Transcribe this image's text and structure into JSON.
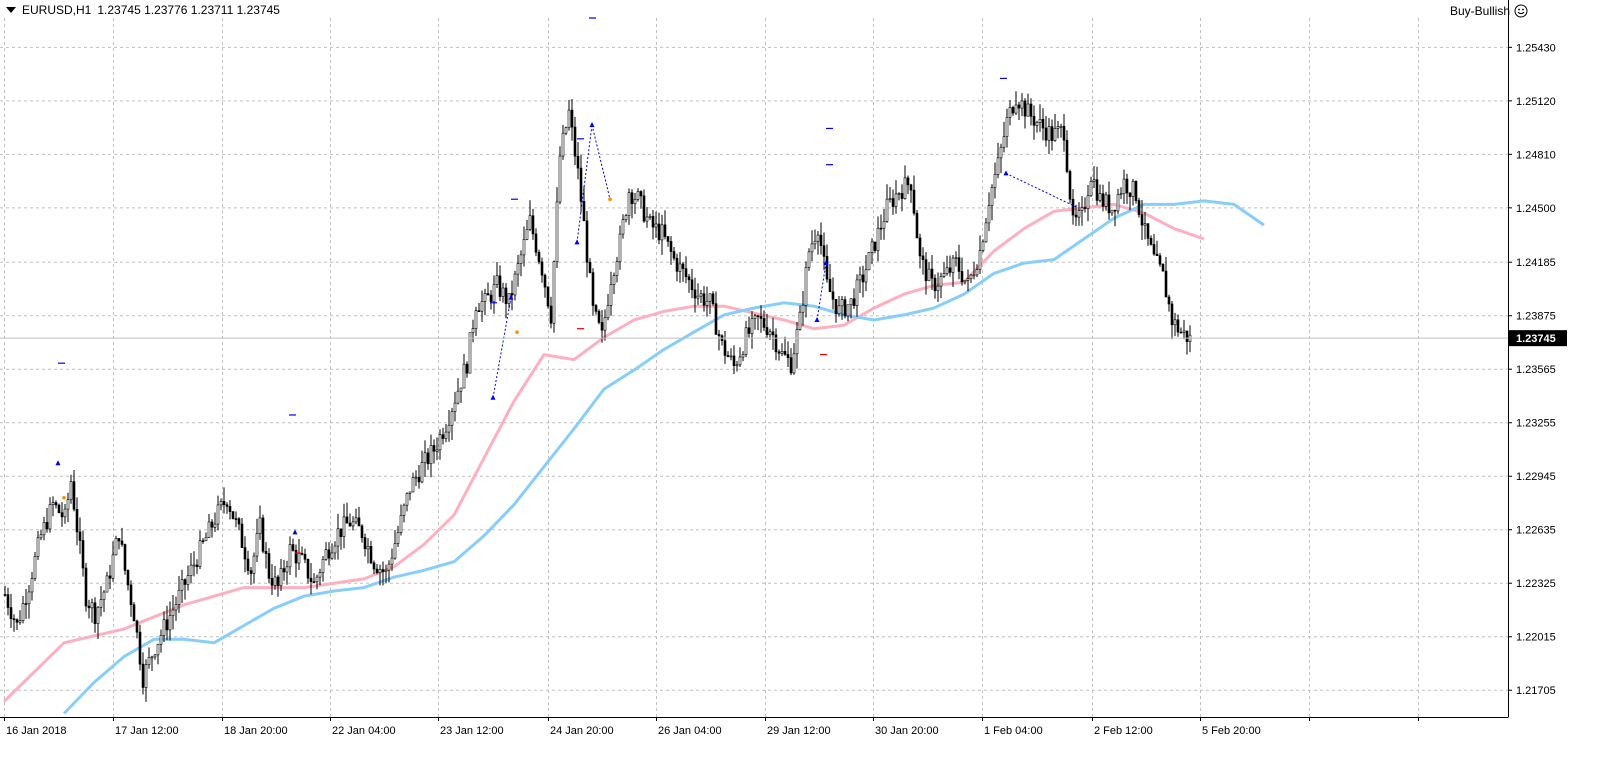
{
  "header": {
    "symbol_tf": "EURUSD,H1",
    "quotes": "1.23745 1.23776 1.23711 1.23745"
  },
  "signal": {
    "label": "Buy-Bullish",
    "icon": "smiley-icon"
  },
  "colors": {
    "background": "#ffffff",
    "grid": "#c0c0c0",
    "candle": "#000000",
    "ma_fast": "#ffb0c0",
    "ma_slow": "#87cefa",
    "marker_blue": "#0000ff",
    "marker_red": "#ff0000",
    "marker_orange": "#ff8c00",
    "price_tag_bg": "#000000",
    "price_tag_text": "#ffffff"
  },
  "chart_data": {
    "type": "candlestick",
    "symbol": "EURUSD",
    "timeframe": "H1",
    "current_price": "1.23745",
    "price_axis_ticks": [
      "1.25430",
      "1.25120",
      "1.24810",
      "1.24500",
      "1.24185",
      "1.23875",
      "1.23565",
      "1.23255",
      "1.22945",
      "1.22635",
      "1.22325",
      "1.22015",
      "1.21705"
    ],
    "ylim": [
      1.2155,
      1.256
    ],
    "time_axis_labels": [
      "16 Jan 2018",
      "17 Jan 12:00",
      "18 Jan 20:00",
      "22 Jan 04:00",
      "23 Jan 12:00",
      "24 Jan 20:00",
      "26 Jan 04:00",
      "29 Jan 12:00",
      "30 Jan 20:00",
      "1 Feb 04:00",
      "2 Feb 12:00",
      "5 Feb 20:00"
    ],
    "close_path": [
      [
        0,
        1.2226
      ],
      [
        4,
        1.2208
      ],
      [
        8,
        1.2232
      ],
      [
        12,
        1.226
      ],
      [
        16,
        1.2278
      ],
      [
        20,
        1.227
      ],
      [
        22,
        1.2292
      ],
      [
        24,
        1.2265
      ],
      [
        27,
        1.2225
      ],
      [
        30,
        1.2215
      ],
      [
        34,
        1.2232
      ],
      [
        38,
        1.2262
      ],
      [
        40,
        1.224
      ],
      [
        43,
        1.2215
      ],
      [
        46,
        1.2178
      ],
      [
        50,
        1.2196
      ],
      [
        54,
        1.221
      ],
      [
        58,
        1.2225
      ],
      [
        62,
        1.224
      ],
      [
        66,
        1.2255
      ],
      [
        70,
        1.227
      ],
      [
        74,
        1.2282
      ],
      [
        78,
        1.2262
      ],
      [
        82,
        1.224
      ],
      [
        85,
        1.2265
      ],
      [
        88,
        1.2238
      ],
      [
        91,
        1.223
      ],
      [
        95,
        1.2252
      ],
      [
        99,
        1.2245
      ],
      [
        103,
        1.2232
      ],
      [
        107,
        1.225
      ],
      [
        111,
        1.2262
      ],
      [
        115,
        1.2268
      ],
      [
        119,
        1.2262
      ],
      [
        123,
        1.2245
      ],
      [
        127,
        1.2238
      ],
      [
        131,
        1.2262
      ],
      [
        135,
        1.2288
      ],
      [
        139,
        1.23
      ],
      [
        143,
        1.231
      ],
      [
        147,
        1.2325
      ],
      [
        151,
        1.2345
      ],
      [
        154,
        1.236
      ],
      [
        157,
        1.2395
      ],
      [
        160,
        1.2395
      ],
      [
        164,
        1.2405
      ],
      [
        168,
        1.2395
      ],
      [
        172,
        1.2422
      ],
      [
        175,
        1.2442
      ],
      [
        179,
        1.2415
      ],
      [
        182,
        1.2388
      ],
      [
        185,
        1.248
      ],
      [
        188,
        1.2505
      ],
      [
        191,
        1.247
      ],
      [
        193,
        1.244
      ],
      [
        196,
        1.239
      ],
      [
        199,
        1.2375
      ],
      [
        202,
        1.241
      ],
      [
        205,
        1.243
      ],
      [
        208,
        1.246
      ],
      [
        211,
        1.2455
      ],
      [
        215,
        1.244
      ],
      [
        219,
        1.2435
      ],
      [
        223,
        1.242
      ],
      [
        227,
        1.241
      ],
      [
        231,
        1.24
      ],
      [
        235,
        1.2395
      ],
      [
        239,
        1.237
      ],
      [
        243,
        1.2358
      ],
      [
        247,
        1.2375
      ],
      [
        251,
        1.2385
      ],
      [
        255,
        1.238
      ],
      [
        259,
        1.2365
      ],
      [
        262,
        1.236
      ],
      [
        265,
        1.2385
      ],
      [
        268,
        1.2425
      ],
      [
        271,
        1.244
      ],
      [
        274,
        1.2405
      ],
      [
        278,
        1.239
      ],
      [
        282,
        1.2395
      ],
      [
        286,
        1.241
      ],
      [
        290,
        1.243
      ],
      [
        294,
        1.245
      ],
      [
        298,
        1.246
      ],
      [
        302,
        1.2465
      ],
      [
        305,
        1.242
      ],
      [
        309,
        1.2405
      ],
      [
        313,
        1.241
      ],
      [
        317,
        1.2418
      ],
      [
        321,
        1.2405
      ],
      [
        325,
        1.2425
      ],
      [
        328,
        1.2455
      ],
      [
        331,
        1.2475
      ],
      [
        334,
        1.25
      ],
      [
        337,
        1.2515
      ],
      [
        341,
        1.2505
      ],
      [
        345,
        1.2498
      ],
      [
        349,
        1.2492
      ],
      [
        353,
        1.2495
      ],
      [
        356,
        1.244
      ],
      [
        359,
        1.2445
      ],
      [
        362,
        1.247
      ],
      [
        365,
        1.2455
      ],
      [
        369,
        1.245
      ],
      [
        373,
        1.2465
      ],
      [
        377,
        1.2458
      ],
      [
        380,
        1.2435
      ],
      [
        383,
        1.242
      ],
      [
        386,
        1.241
      ],
      [
        389,
        1.2385
      ],
      [
        392,
        1.2378
      ],
      [
        395,
        1.2374
      ]
    ],
    "series": [
      {
        "color_key": "ma_fast",
        "points": [
          [
            0,
            1.2164
          ],
          [
            20,
            1.2198
          ],
          [
            40,
            1.2206
          ],
          [
            60,
            1.222
          ],
          [
            80,
            1.223
          ],
          [
            100,
            1.223
          ],
          [
            120,
            1.2235
          ],
          [
            130,
            1.2242
          ],
          [
            140,
            1.2255
          ],
          [
            150,
            1.2272
          ],
          [
            160,
            1.2305
          ],
          [
            170,
            1.2338
          ],
          [
            180,
            1.2365
          ],
          [
            190,
            1.2362
          ],
          [
            200,
            1.2375
          ],
          [
            210,
            1.2385
          ],
          [
            220,
            1.239
          ],
          [
            230,
            1.2393
          ],
          [
            240,
            1.2393
          ],
          [
            250,
            1.2389
          ],
          [
            260,
            1.2385
          ],
          [
            270,
            1.238
          ],
          [
            280,
            1.2382
          ],
          [
            290,
            1.2392
          ],
          [
            300,
            1.24
          ],
          [
            310,
            1.2405
          ],
          [
            320,
            1.2407
          ],
          [
            330,
            1.2425
          ],
          [
            340,
            1.2438
          ],
          [
            350,
            1.2448
          ],
          [
            360,
            1.245
          ],
          [
            370,
            1.2452
          ],
          [
            380,
            1.2447
          ],
          [
            390,
            1.2438
          ],
          [
            400,
            1.2432
          ]
        ]
      },
      {
        "color_key": "ma_slow",
        "points": [
          [
            20,
            1.2157
          ],
          [
            30,
            1.2175
          ],
          [
            40,
            1.219
          ],
          [
            50,
            1.22
          ],
          [
            60,
            1.22
          ],
          [
            70,
            1.2198
          ],
          [
            80,
            1.2208
          ],
          [
            90,
            1.2218
          ],
          [
            100,
            1.2225
          ],
          [
            110,
            1.2228
          ],
          [
            120,
            1.223
          ],
          [
            130,
            1.2236
          ],
          [
            140,
            1.224
          ],
          [
            150,
            1.2245
          ],
          [
            160,
            1.226
          ],
          [
            170,
            1.2278
          ],
          [
            180,
            1.23
          ],
          [
            190,
            1.2322
          ],
          [
            200,
            1.2345
          ],
          [
            210,
            1.2356
          ],
          [
            220,
            1.2368
          ],
          [
            230,
            1.2378
          ],
          [
            240,
            1.2388
          ],
          [
            250,
            1.2392
          ],
          [
            260,
            1.2395
          ],
          [
            270,
            1.2393
          ],
          [
            280,
            1.2388
          ],
          [
            290,
            1.2385
          ],
          [
            300,
            1.2388
          ],
          [
            310,
            1.2392
          ],
          [
            320,
            1.24
          ],
          [
            330,
            1.2412
          ],
          [
            340,
            1.2418
          ],
          [
            350,
            1.242
          ],
          [
            360,
            1.2432
          ],
          [
            370,
            1.2444
          ],
          [
            380,
            1.2452
          ],
          [
            390,
            1.2452
          ],
          [
            400,
            1.2454
          ],
          [
            410,
            1.2452
          ],
          [
            420,
            1.244
          ]
        ]
      }
    ],
    "pattern_markers": [
      {
        "bar": 18,
        "price": 1.2302,
        "color_key": "marker_blue",
        "type": "arrow-up"
      },
      {
        "bar": 20,
        "price": 1.2282,
        "color_key": "marker_orange",
        "type": "dot"
      },
      {
        "bar": 97,
        "price": 1.2262,
        "color_key": "marker_blue",
        "type": "arrow-up"
      },
      {
        "bar": 98,
        "price": 1.225,
        "color_key": "marker_red",
        "type": "dash"
      },
      {
        "bar": 163,
        "price": 1.234,
        "color_key": "marker_blue",
        "type": "arrow-up"
      },
      {
        "bar": 169,
        "price": 1.2398,
        "color_key": "marker_blue",
        "type": "arrow-up"
      },
      {
        "bar": 171,
        "price": 1.2378,
        "color_key": "marker_orange",
        "type": "dot"
      },
      {
        "bar": 191,
        "price": 1.243,
        "color_key": "marker_blue",
        "type": "arrow-up"
      },
      {
        "bar": 196,
        "price": 1.2498,
        "color_key": "marker_blue",
        "type": "arrow-up"
      },
      {
        "bar": 202,
        "price": 1.2455,
        "color_key": "marker_orange",
        "type": "dot"
      },
      {
        "bar": 271,
        "price": 1.2385,
        "color_key": "marker_blue",
        "type": "arrow-up"
      },
      {
        "bar": 274,
        "price": 1.2418,
        "color_key": "marker_blue",
        "type": "arrow-up"
      },
      {
        "bar": 334,
        "price": 1.247,
        "color_key": "marker_blue",
        "type": "arrow-up"
      }
    ],
    "level_marks": [
      {
        "bar": 19,
        "price": 1.236,
        "color_key": "marker_blue"
      },
      {
        "bar": 96,
        "price": 1.233,
        "color_key": "marker_blue"
      },
      {
        "bar": 163,
        "price": 1.2395,
        "color_key": "marker_blue"
      },
      {
        "bar": 170,
        "price": 1.2455,
        "color_key": "marker_blue"
      },
      {
        "bar": 192,
        "price": 1.249,
        "color_key": "marker_blue"
      },
      {
        "bar": 196,
        "price": 1.256,
        "color_key": "marker_blue"
      },
      {
        "bar": 192,
        "price": 1.238,
        "color_key": "marker_red"
      },
      {
        "bar": 275,
        "price": 1.2496,
        "color_key": "marker_blue"
      },
      {
        "bar": 275,
        "price": 1.2475,
        "color_key": "marker_blue"
      },
      {
        "bar": 333,
        "price": 1.2525,
        "color_key": "marker_blue"
      },
      {
        "bar": 273,
        "price": 1.2365,
        "color_key": "marker_red"
      }
    ],
    "dotted_segments": [
      {
        "from": [
          163,
          1.234
        ],
        "to": [
          169,
          1.2398
        ]
      },
      {
        "from": [
          191,
          1.243
        ],
        "to": [
          196,
          1.2498
        ]
      },
      {
        "from": [
          196,
          1.2498
        ],
        "to": [
          202,
          1.2455
        ]
      },
      {
        "from": [
          271,
          1.2385
        ],
        "to": [
          274,
          1.2418
        ]
      },
      {
        "from": [
          334,
          1.247
        ],
        "to": [
          358,
          1.245
        ]
      }
    ],
    "grid": true
  }
}
